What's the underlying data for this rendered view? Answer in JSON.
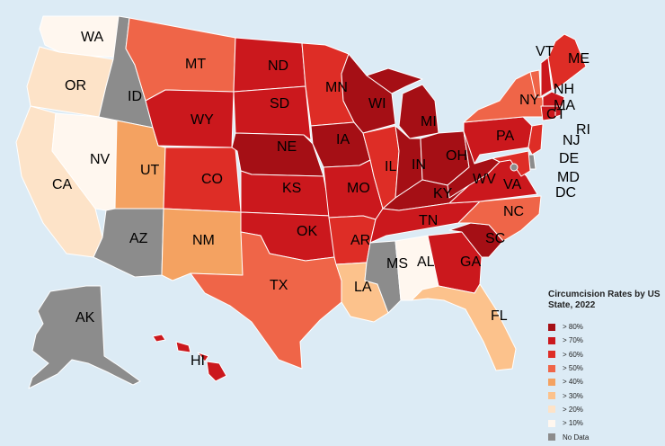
{
  "legend": {
    "title": "Circumcision Rates by US State, 2022",
    "items": [
      {
        "label": "> 80%",
        "color": "#a50f15"
      },
      {
        "label": "> 70%",
        "color": "#cb181d"
      },
      {
        "label": "> 60%",
        "color": "#de2d26"
      },
      {
        "label": "> 50%",
        "color": "#ef6548"
      },
      {
        "label": "> 40%",
        "color": "#f4a261"
      },
      {
        "label": "> 30%",
        "color": "#fcc28c"
      },
      {
        "label": "> 20%",
        "color": "#fde3c8"
      },
      {
        "label": "> 10%",
        "color": "#fff7ef"
      },
      {
        "label": "No Data",
        "color": "#8c8c8c"
      }
    ]
  },
  "states": [
    {
      "abbr": "WA",
      "category": "> 10%"
    },
    {
      "abbr": "OR",
      "category": "> 20%"
    },
    {
      "abbr": "CA",
      "category": "> 20%"
    },
    {
      "abbr": "NV",
      "category": "> 10%"
    },
    {
      "abbr": "ID",
      "category": "No Data"
    },
    {
      "abbr": "MT",
      "category": "> 50%"
    },
    {
      "abbr": "WY",
      "category": "> 70%"
    },
    {
      "abbr": "UT",
      "category": "> 40%"
    },
    {
      "abbr": "CO",
      "category": "> 60%"
    },
    {
      "abbr": "AZ",
      "category": "No Data"
    },
    {
      "abbr": "NM",
      "category": "> 40%"
    },
    {
      "abbr": "ND",
      "category": "> 70%"
    },
    {
      "abbr": "SD",
      "category": "> 70%"
    },
    {
      "abbr": "NE",
      "category": "> 80%"
    },
    {
      "abbr": "KS",
      "category": "> 70%"
    },
    {
      "abbr": "OK",
      "category": "> 70%"
    },
    {
      "abbr": "TX",
      "category": "> 50%"
    },
    {
      "abbr": "MN",
      "category": "> 60%"
    },
    {
      "abbr": "IA",
      "category": "> 80%"
    },
    {
      "abbr": "MO",
      "category": "> 70%"
    },
    {
      "abbr": "AR",
      "category": "> 60%"
    },
    {
      "abbr": "LA",
      "category": "> 30%"
    },
    {
      "abbr": "WI",
      "category": "> 80%"
    },
    {
      "abbr": "IL",
      "category": "> 60%"
    },
    {
      "abbr": "MI",
      "category": "> 80%"
    },
    {
      "abbr": "IN",
      "category": "> 80%"
    },
    {
      "abbr": "OH",
      "category": "> 80%"
    },
    {
      "abbr": "KY",
      "category": "> 80%"
    },
    {
      "abbr": "TN",
      "category": "> 70%"
    },
    {
      "abbr": "MS",
      "category": "No Data"
    },
    {
      "abbr": "AL",
      "category": "> 10%"
    },
    {
      "abbr": "GA",
      "category": "> 70%"
    },
    {
      "abbr": "FL",
      "category": "> 30%"
    },
    {
      "abbr": "SC",
      "category": "> 80%"
    },
    {
      "abbr": "NC",
      "category": "> 50%"
    },
    {
      "abbr": "VA",
      "category": "> 70%"
    },
    {
      "abbr": "WV",
      "category": "> 80%"
    },
    {
      "abbr": "PA",
      "category": "> 70%"
    },
    {
      "abbr": "NY",
      "category": "> 50%"
    },
    {
      "abbr": "VT",
      "category": "> 50%"
    },
    {
      "abbr": "NH",
      "category": "> 70%"
    },
    {
      "abbr": "ME",
      "category": "> 60%"
    },
    {
      "abbr": "MA",
      "category": "> 70%"
    },
    {
      "abbr": "RI",
      "category": "> 70%"
    },
    {
      "abbr": "CT",
      "category": "> 70%"
    },
    {
      "abbr": "NJ",
      "category": "> 60%"
    },
    {
      "abbr": "DE",
      "category": "No Data"
    },
    {
      "abbr": "MD",
      "category": "> 60%"
    },
    {
      "abbr": "DC",
      "category": "No Data"
    },
    {
      "abbr": "AK",
      "category": "No Data"
    },
    {
      "abbr": "HI",
      "category": "> 70%"
    }
  ]
}
